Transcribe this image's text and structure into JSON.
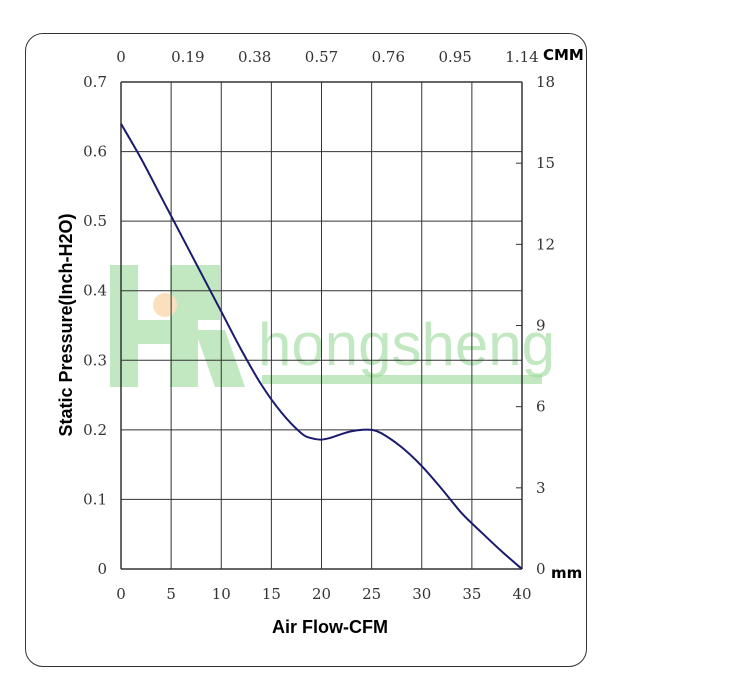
{
  "watermark": {
    "text": "hongsheng",
    "logo_letters": "HR",
    "color": "#8fd68f"
  },
  "chart_data": {
    "type": "line",
    "xlabel": "Air Flow-CFM",
    "ylabel": "Static Pressure(Inch-H2O)",
    "x_ticks": [
      "0",
      "5",
      "10",
      "15",
      "20",
      "25",
      "30",
      "35",
      "40"
    ],
    "y_ticks": [
      "0",
      "0.1",
      "0.2",
      "0.3",
      "0.4",
      "0.5",
      "0.6",
      "0.7"
    ],
    "top_ticks": [
      "0",
      "0.19",
      "0.38",
      "0.57",
      "0.76",
      "0.95",
      "1.14"
    ],
    "top_unit": "CMM",
    "right_ticks": [
      "0",
      "3",
      "6",
      "9",
      "12",
      "15",
      "18"
    ],
    "right_unit": "mm",
    "xlim": [
      0,
      40
    ],
    "ylim": [
      0,
      0.7
    ],
    "grid": true,
    "line_color": "#1a1a6e",
    "series": [
      {
        "x": [
          0,
          2,
          4,
          6,
          8,
          10,
          12,
          14,
          16,
          18,
          19,
          20,
          21,
          22,
          23,
          24,
          25,
          26,
          28,
          30,
          32,
          34,
          36,
          38,
          40
        ],
        "values": [
          0.64,
          0.59,
          0.535,
          0.48,
          0.425,
          0.37,
          0.315,
          0.265,
          0.225,
          0.195,
          0.188,
          0.186,
          0.189,
          0.194,
          0.198,
          0.2,
          0.2,
          0.195,
          0.175,
          0.148,
          0.115,
          0.08,
          0.052,
          0.025,
          0.0
        ]
      }
    ]
  }
}
